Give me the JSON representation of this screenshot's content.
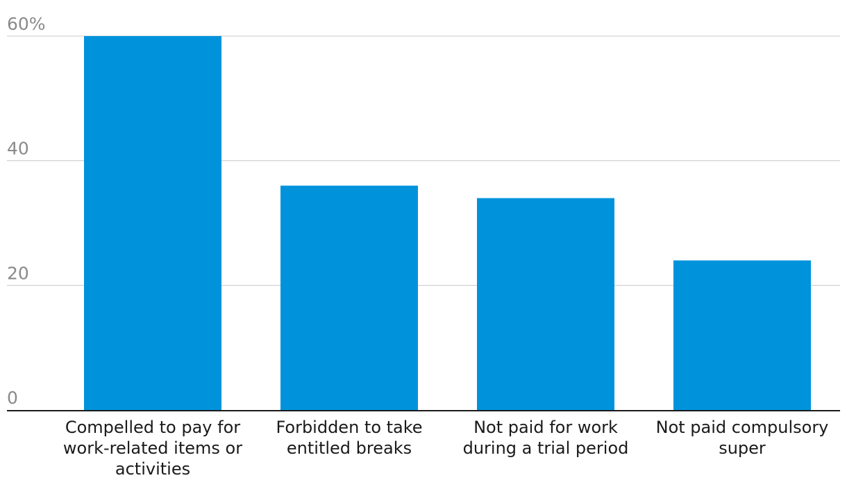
{
  "chart_data": {
    "type": "bar",
    "categories": [
      [
        "Compelled to pay for",
        "work-related items or",
        "activities"
      ],
      [
        "Forbidden to take",
        "entitled breaks"
      ],
      [
        "Not paid for work",
        "during a trial period"
      ],
      [
        "Not paid compulsory",
        "super"
      ]
    ],
    "values": [
      60,
      36,
      34,
      24
    ],
    "ylim": [
      0,
      60
    ],
    "yticks": [
      {
        "value": 0,
        "label": "0"
      },
      {
        "value": 20,
        "label": "20"
      },
      {
        "value": 40,
        "label": "40"
      },
      {
        "value": 60,
        "label": "60%"
      }
    ],
    "title": "",
    "xlabel": "",
    "ylabel": "",
    "grid": true,
    "bar_color": "#0093dc"
  }
}
